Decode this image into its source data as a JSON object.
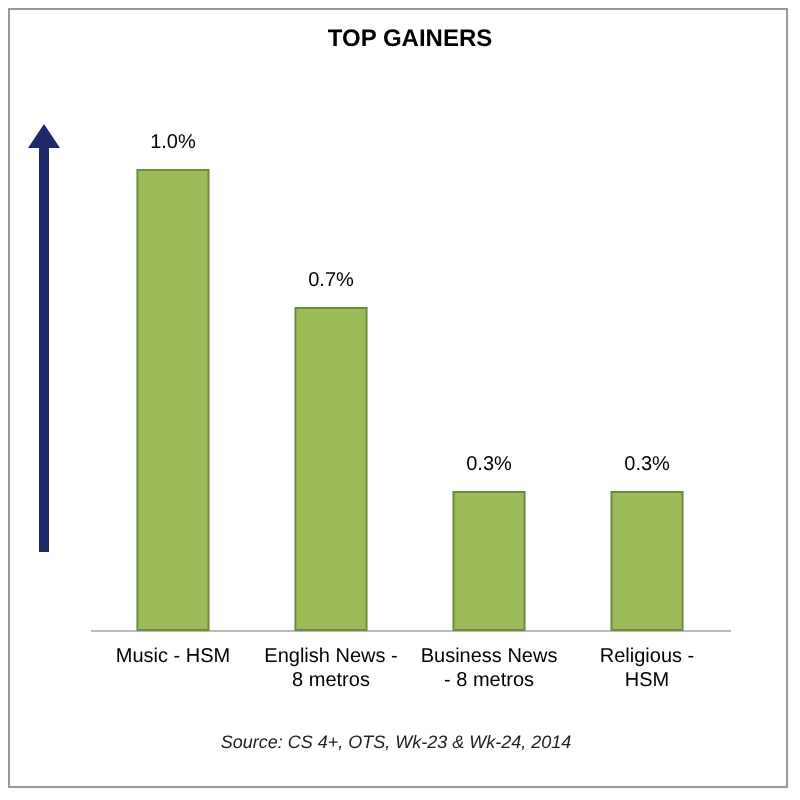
{
  "chart_data": {
    "type": "bar",
    "title": "TOP GAINERS",
    "categories": [
      "Music - HSM",
      "English News - 8 metros",
      "Business News - 8 metros",
      "Religious - HSM"
    ],
    "values": [
      1.0,
      0.7,
      0.3,
      0.3
    ],
    "color": "#9bbb59",
    "value_labels": [
      "1.0%",
      "0.7%",
      "0.3%",
      "0.3%"
    ],
    "annotations": [
      "Source: CS 4+, OTS, Wk-23 & Wk-24, 2014"
    ]
  }
}
